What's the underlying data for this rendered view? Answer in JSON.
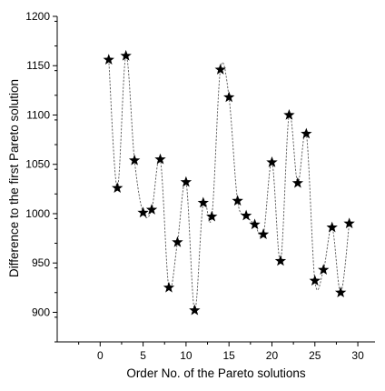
{
  "chart_data": {
    "type": "scatter",
    "title": "",
    "xlabel": "Order No. of the Pareto solutions",
    "ylabel": "Difference to the first Pareto solution",
    "xlim": [
      -5,
      32
    ],
    "ylim": [
      870,
      1200
    ],
    "x_ticks": [
      0,
      5,
      10,
      15,
      20,
      25,
      30
    ],
    "y_ticks": [
      900,
      950,
      1000,
      1050,
      1100,
      1150,
      1200
    ],
    "marker": "star",
    "connector": "smooth dashed spline",
    "grid": false,
    "legend": "none",
    "colors": {
      "marker": "#000000",
      "line": "#555555",
      "axis": "#000000"
    },
    "series": [
      {
        "x": [
          1,
          2,
          3,
          4,
          5,
          6,
          7,
          8,
          9,
          10,
          11,
          12,
          13,
          14,
          15,
          16,
          17,
          18,
          19,
          20,
          21,
          22,
          23,
          24,
          25,
          26,
          27,
          28,
          29
        ],
        "values": [
          1156,
          1026,
          1160,
          1054,
          1001,
          1004,
          1055,
          925,
          971,
          1032,
          902,
          1011,
          997,
          1146,
          1118,
          1013,
          998,
          989,
          979,
          1052,
          952,
          1100,
          1031,
          1081,
          932,
          943,
          986,
          920,
          990
        ]
      }
    ]
  }
}
